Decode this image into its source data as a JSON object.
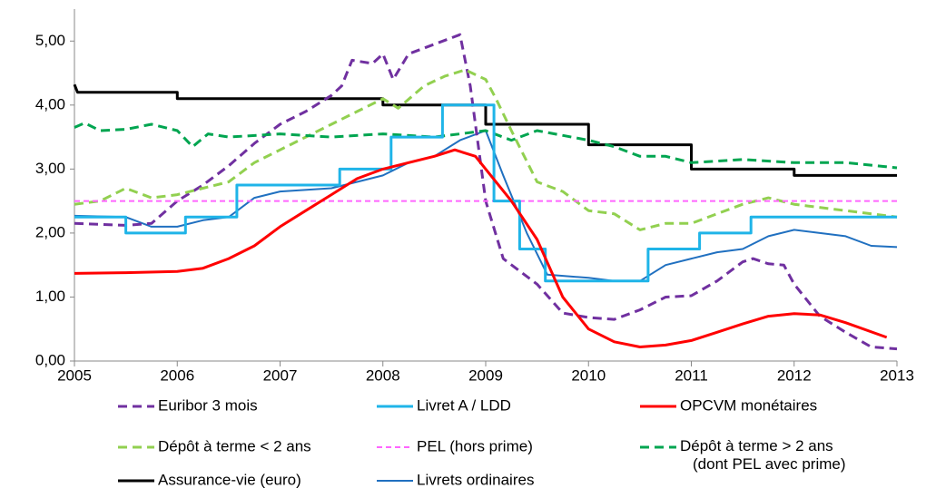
{
  "chart_data": {
    "type": "line",
    "xlim": [
      2005,
      2013
    ],
    "xticks": [
      2005,
      2006,
      2007,
      2008,
      2009,
      2010,
      2011,
      2012,
      2013
    ],
    "ylim": [
      0,
      5.5
    ],
    "yticks": [
      {
        "value": 0,
        "label": "0,00"
      },
      {
        "value": 1,
        "label": "1,00"
      },
      {
        "value": 2,
        "label": "2,00"
      },
      {
        "value": 3,
        "label": "3,00"
      },
      {
        "value": 4,
        "label": "4,00"
      },
      {
        "value": 5,
        "label": "5,00"
      }
    ],
    "grid": false,
    "legend": "bottom",
    "series": [
      {
        "name": "Euribor 3 mois",
        "color": "#7030a0",
        "line_style": "dashed",
        "x": [
          2005,
          2005.5,
          2005.75,
          2006,
          2006.25,
          2006.5,
          2006.75,
          2007,
          2007.25,
          2007.5,
          2007.6,
          2007.7,
          2007.9,
          2008,
          2008.1,
          2008.25,
          2008.5,
          2008.75,
          2008.85,
          2009,
          2009.17,
          2009.5,
          2009.75,
          2010,
          2010.25,
          2010.5,
          2010.75,
          2011,
          2011.25,
          2011.5,
          2011.6,
          2011.75,
          2011.9,
          2012,
          2012.25,
          2012.5,
          2012.75,
          2013
        ],
        "values": [
          2.15,
          2.12,
          2.15,
          2.5,
          2.75,
          3.05,
          3.4,
          3.7,
          3.9,
          4.15,
          4.3,
          4.7,
          4.65,
          4.8,
          4.4,
          4.8,
          4.95,
          5.1,
          4.3,
          2.5,
          1.6,
          1.2,
          0.75,
          0.68,
          0.65,
          0.8,
          1.0,
          1.02,
          1.25,
          1.55,
          1.6,
          1.52,
          1.5,
          1.2,
          0.7,
          0.45,
          0.22,
          0.19
        ]
      },
      {
        "name": "Livret A / LDD",
        "color": "#1fb4e8",
        "line_style": "solid",
        "x": [
          2005,
          2005.5,
          2005.5,
          2006.08,
          2006.08,
          2006.58,
          2006.58,
          2007.58,
          2007.58,
          2008.08,
          2008.08,
          2008.58,
          2008.58,
          2009.08,
          2009.08,
          2009.33,
          2009.33,
          2009.58,
          2009.58,
          2010.58,
          2010.58,
          2011.08,
          2011.08,
          2011.58,
          2011.58,
          2013
        ],
        "values": [
          2.25,
          2.25,
          2.0,
          2.0,
          2.25,
          2.25,
          2.75,
          2.75,
          3.0,
          3.0,
          3.5,
          3.5,
          4.0,
          4.0,
          2.5,
          2.5,
          1.75,
          1.75,
          1.25,
          1.25,
          1.75,
          1.75,
          2.0,
          2.0,
          2.25,
          2.25
        ]
      },
      {
        "name": "OPCVM monétaires",
        "color": "#ff0000",
        "line_style": "solid",
        "x": [
          2005,
          2005.5,
          2006,
          2006.25,
          2006.5,
          2006.75,
          2007,
          2007.25,
          2007.5,
          2007.75,
          2008,
          2008.25,
          2008.5,
          2008.7,
          2008.9,
          2009,
          2009.25,
          2009.5,
          2009.75,
          2010,
          2010.25,
          2010.5,
          2010.75,
          2011,
          2011.25,
          2011.5,
          2011.75,
          2012,
          2012.25,
          2012.5,
          2012.9
        ],
        "values": [
          1.37,
          1.38,
          1.4,
          1.45,
          1.6,
          1.8,
          2.1,
          2.35,
          2.6,
          2.85,
          3.0,
          3.1,
          3.2,
          3.3,
          3.2,
          3.0,
          2.5,
          1.9,
          1.0,
          0.5,
          0.3,
          0.22,
          0.25,
          0.32,
          0.45,
          0.58,
          0.7,
          0.74,
          0.72,
          0.6,
          0.37
        ]
      },
      {
        "name": "Dépôt à terme < 2 ans",
        "color": "#92d050",
        "line_style": "dashed",
        "x": [
          2005,
          2005.25,
          2005.5,
          2005.75,
          2006,
          2006.25,
          2006.5,
          2006.75,
          2007,
          2007.25,
          2007.5,
          2007.75,
          2008,
          2008.15,
          2008.4,
          2008.6,
          2008.8,
          2009,
          2009.1,
          2009.25,
          2009.5,
          2009.75,
          2010,
          2010.25,
          2010.5,
          2010.75,
          2011,
          2011.25,
          2011.5,
          2011.75,
          2012,
          2012.5,
          2013
        ],
        "values": [
          2.45,
          2.5,
          2.7,
          2.55,
          2.6,
          2.7,
          2.8,
          3.1,
          3.3,
          3.5,
          3.7,
          3.9,
          4.1,
          3.95,
          4.3,
          4.45,
          4.55,
          4.4,
          4.1,
          3.6,
          2.8,
          2.65,
          2.35,
          2.3,
          2.05,
          2.15,
          2.15,
          2.3,
          2.45,
          2.55,
          2.45,
          2.35,
          2.25
        ]
      },
      {
        "name": "PEL (hors prime)",
        "color": "#ff66ff",
        "line_style": "dashed",
        "x": [
          2005,
          2013
        ],
        "values": [
          2.5,
          2.5
        ]
      },
      {
        "name": "Dépôt à terme > 2 ans\n(dont PEL avec prime)",
        "color": "#00a550",
        "line_style": "dashed",
        "x": [
          2005,
          2005.1,
          2005.25,
          2005.5,
          2005.75,
          2006,
          2006.15,
          2006.3,
          2006.5,
          2007,
          2007.5,
          2008,
          2008.5,
          2008.75,
          2009,
          2009.25,
          2009.5,
          2010,
          2010.25,
          2010.5,
          2010.75,
          2011,
          2011.5,
          2012,
          2012.5,
          2013
        ],
        "values": [
          3.65,
          3.72,
          3.6,
          3.62,
          3.7,
          3.6,
          3.35,
          3.55,
          3.5,
          3.55,
          3.5,
          3.55,
          3.5,
          3.55,
          3.6,
          3.45,
          3.6,
          3.45,
          3.35,
          3.2,
          3.2,
          3.1,
          3.15,
          3.1,
          3.1,
          3.02
        ]
      },
      {
        "name": "Assurance-vie (euro)",
        "color": "#000000",
        "line_style": "solid",
        "x": [
          2005,
          2005.03,
          2006,
          2006,
          2008,
          2008,
          2009,
          2009,
          2010,
          2010,
          2011,
          2011,
          2012,
          2012,
          2013
        ],
        "values": [
          4.32,
          4.2,
          4.2,
          4.1,
          4.1,
          4.0,
          4.0,
          3.7,
          3.7,
          3.38,
          3.38,
          3.0,
          3.0,
          2.9,
          2.9
        ]
      },
      {
        "name": "Livrets ordinaires",
        "color": "#2070c0",
        "line_style": "solid",
        "x": [
          2005,
          2005.5,
          2005.75,
          2006,
          2006.25,
          2006.5,
          2006.75,
          2007,
          2007.5,
          2007.75,
          2008,
          2008.25,
          2008.5,
          2008.75,
          2009,
          2009.17,
          2009.4,
          2009.6,
          2010,
          2010.25,
          2010.5,
          2010.75,
          2011,
          2011.25,
          2011.5,
          2011.75,
          2012,
          2012.25,
          2012.5,
          2012.75,
          2013
        ],
        "values": [
          2.27,
          2.25,
          2.1,
          2.1,
          2.2,
          2.25,
          2.55,
          2.65,
          2.7,
          2.8,
          2.9,
          3.1,
          3.2,
          3.45,
          3.6,
          2.9,
          2.0,
          1.35,
          1.3,
          1.25,
          1.25,
          1.5,
          1.6,
          1.7,
          1.75,
          1.95,
          2.05,
          2.0,
          1.95,
          1.8,
          1.78
        ]
      }
    ]
  }
}
